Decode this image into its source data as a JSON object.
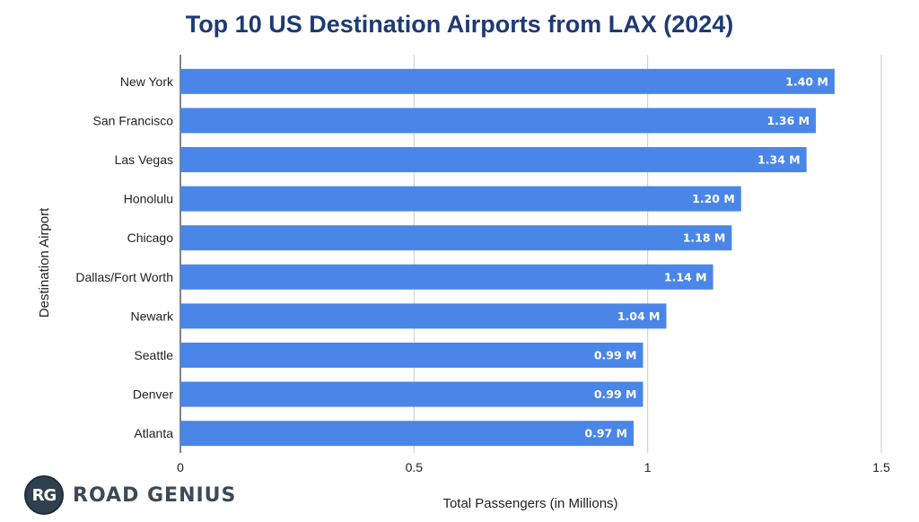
{
  "colors": {
    "bar": "#4a86e8",
    "title": "#1f3a73",
    "grid": "#cccccc",
    "axis": "#333333"
  },
  "branding": {
    "badge_text": "RG",
    "name": "ROAD GENIUS"
  },
  "chart_data": {
    "type": "bar",
    "orientation": "horizontal",
    "title": "Top 10 US Destination Airports from LAX (2024)",
    "xlabel": "Total Passengers (in Millions)",
    "ylabel": "Destination Airport",
    "categories": [
      "New York",
      "San Francisco",
      "Las Vegas",
      "Honolulu",
      "Chicago",
      "Dallas/Fort Worth",
      "Newark",
      "Seattle",
      "Denver",
      "Atlanta"
    ],
    "values": [
      1.4,
      1.36,
      1.34,
      1.2,
      1.18,
      1.14,
      1.04,
      0.99,
      0.99,
      0.97
    ],
    "value_labels": [
      "1.40 M",
      "1.36 M",
      "1.34 M",
      "1.20 M",
      "1.18 M",
      "1.14 M",
      "1.04 M",
      "0.99 M",
      "0.99 M",
      "0.97 M"
    ],
    "xlim": [
      0,
      1.5
    ],
    "xticks": [
      0,
      0.5,
      1,
      1.5
    ],
    "xtick_labels": [
      "0",
      "0.5",
      "1",
      "1.5"
    ],
    "grid": true
  }
}
